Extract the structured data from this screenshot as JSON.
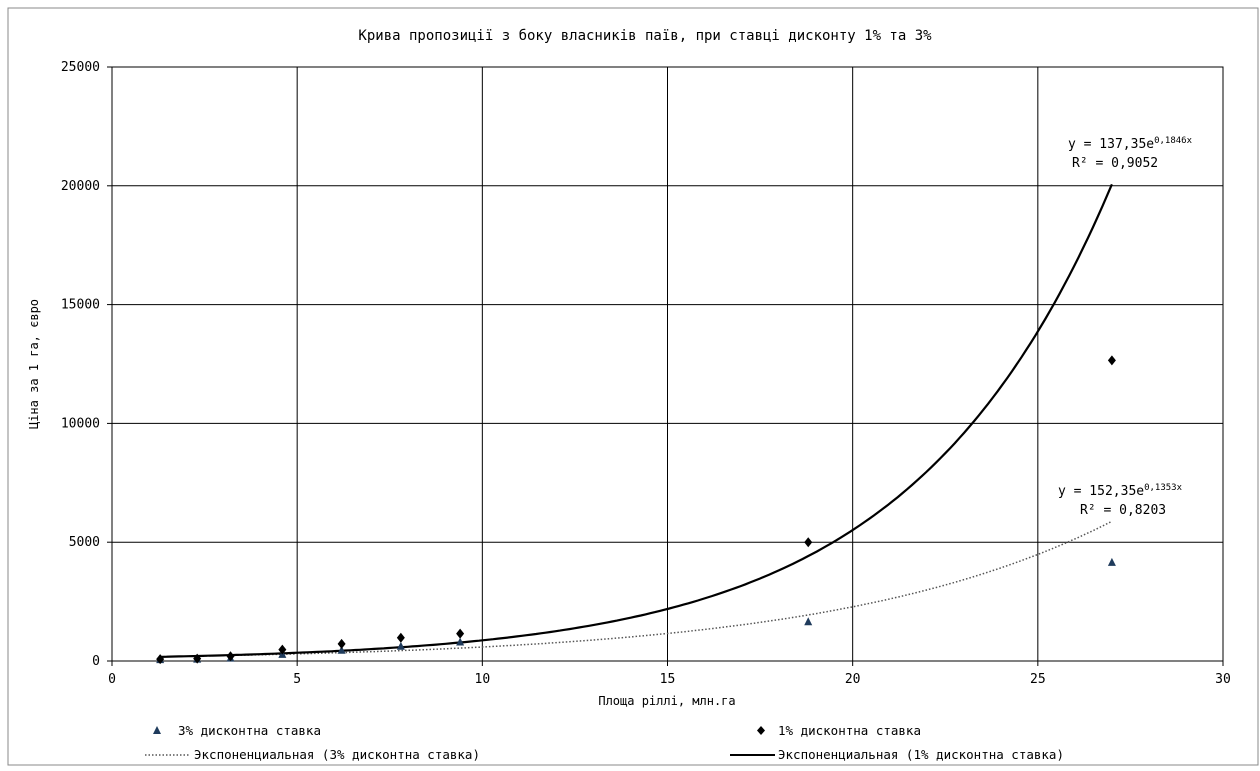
{
  "chart_data": {
    "type": "scatter",
    "title": "Крива пропозиції з боку власників паїв, при ставці дисконту 1% та 3%",
    "xlabel": "Площа ріллі, млн.га",
    "ylabel": "Ціна за 1 га, євро",
    "xlim": [
      0,
      30
    ],
    "ylim": [
      0,
      25000
    ],
    "x_ticks": [
      0,
      5,
      10,
      15,
      20,
      25,
      30
    ],
    "y_ticks": [
      0,
      5000,
      10000,
      15000,
      20000,
      25000
    ],
    "grid": true,
    "legend_position": "bottom",
    "series": [
      {
        "name": "3% дисконтна ставка",
        "marker": "triangle",
        "color": "#1f3b5c",
        "x": [
          1.3,
          2.3,
          3.2,
          4.6,
          6.2,
          7.8,
          9.4,
          18.8,
          27.0
        ],
        "y": [
          60,
          80,
          120,
          280,
          450,
          620,
          800,
          1650,
          4150
        ]
      },
      {
        "name": "1% дисконтна ставка",
        "marker": "diamond",
        "color": "#000000",
        "x": [
          1.3,
          2.3,
          3.2,
          4.6,
          6.2,
          7.8,
          9.4,
          18.8,
          27.0
        ],
        "y": [
          80,
          100,
          200,
          480,
          720,
          980,
          1150,
          5000,
          12650
        ]
      }
    ],
    "trendlines": [
      {
        "name": "Экспоненциальная (3% дисконтна ставка)",
        "style": "dotted",
        "color": "#555555",
        "a": 152.35,
        "b": 0.1353,
        "x_range": [
          1.3,
          27.0
        ],
        "equation_prefix": "y = 152,35e",
        "equation_exponent": "0,1353x",
        "r2": "R² = 0,8203"
      },
      {
        "name": "Экспоненциальная (1% дисконтна ставка)",
        "style": "solid",
        "color": "#000000",
        "a": 137.35,
        "b": 0.1846,
        "x_range": [
          1.3,
          27.0
        ],
        "equation_prefix": "y = 137,35e",
        "equation_exponent": "0,1846x",
        "r2": "R² = 0,9052"
      }
    ]
  }
}
